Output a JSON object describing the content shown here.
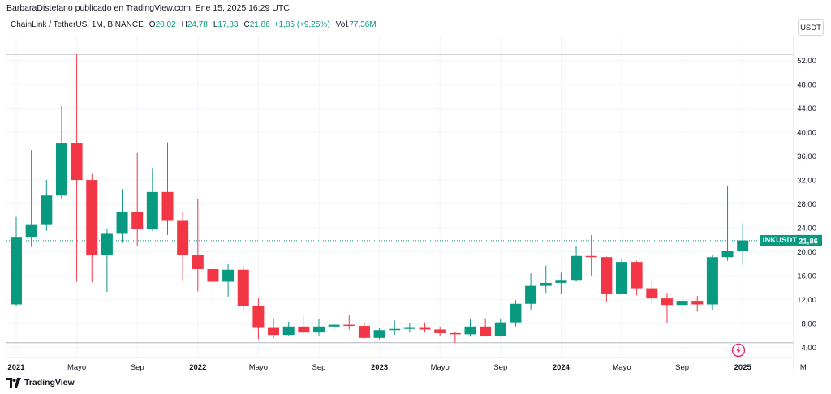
{
  "header": {
    "attribution": "BarbaraDistefano publicado en TradingView.com, Ene 15, 2025 16:29 UTC",
    "symbol": "ChainLink / TetherUS, 1M, BINANCE",
    "o_label": "O",
    "o_value": "20,02",
    "h_label": "H",
    "h_value": "24,78",
    "l_label": "L",
    "l_value": "17,83",
    "c_label": "C",
    "c_value": "21,86",
    "change": "+1,85 (+9,25%)",
    "vol_label": "Vol.",
    "vol_value": "77,36M",
    "currency_button": "USDT"
  },
  "price_tag": {
    "label": "LINKUSDT",
    "value": "21,86"
  },
  "brand": {
    "name": "TradingView"
  },
  "colors": {
    "up": "#089981",
    "down": "#f23645",
    "grid": "#f0f3fa",
    "axis_text": "#131722"
  },
  "chart_data": {
    "type": "candlestick",
    "ylim": [
      3,
      56
    ],
    "y_ticks": [
      "4,00",
      "8,00",
      "12,00",
      "16,00",
      "20,00",
      "24,00",
      "28,00",
      "32,00",
      "36,00",
      "40,00",
      "44,00",
      "48,00",
      "52,00"
    ],
    "y_tick_values": [
      4,
      8,
      12,
      16,
      20,
      24,
      28,
      32,
      36,
      40,
      44,
      48,
      52
    ],
    "x_labels": [
      {
        "label": "2021",
        "index": 0,
        "bold": true
      },
      {
        "label": "Mayo",
        "index": 4,
        "bold": false
      },
      {
        "label": "Sep",
        "index": 8,
        "bold": false
      },
      {
        "label": "2022",
        "index": 12,
        "bold": true
      },
      {
        "label": "Mayo",
        "index": 16,
        "bold": false
      },
      {
        "label": "Sep",
        "index": 20,
        "bold": false
      },
      {
        "label": "2023",
        "index": 24,
        "bold": true
      },
      {
        "label": "Mayo",
        "index": 28,
        "bold": false
      },
      {
        "label": "Sep",
        "index": 32,
        "bold": false
      },
      {
        "label": "2024",
        "index": 36,
        "bold": true
      },
      {
        "label": "Mayo",
        "index": 40,
        "bold": false
      },
      {
        "label": "Sep",
        "index": 44,
        "bold": false
      },
      {
        "label": "2025",
        "index": 48,
        "bold": true
      },
      {
        "label": "M",
        "index": 52,
        "bold": false
      }
    ],
    "last_price": 21.86,
    "series": [
      {
        "name": "LINKUSDT",
        "ohlc": [
          [
            11.2,
            25.8,
            10.9,
            22.5
          ],
          [
            22.5,
            37.0,
            20.8,
            24.6
          ],
          [
            24.6,
            32.0,
            23.5,
            29.4
          ],
          [
            29.4,
            44.4,
            28.8,
            38.1
          ],
          [
            38.1,
            53.0,
            15.0,
            32.0
          ],
          [
            32.0,
            33.0,
            14.9,
            19.5
          ],
          [
            19.5,
            23.8,
            13.3,
            23.0
          ],
          [
            23.0,
            30.5,
            21.5,
            26.6
          ],
          [
            26.6,
            36.5,
            21.0,
            23.8
          ],
          [
            23.8,
            34.0,
            23.5,
            30.0
          ],
          [
            30.0,
            38.3,
            22.8,
            25.3
          ],
          [
            25.3,
            26.8,
            15.2,
            19.5
          ],
          [
            19.5,
            28.9,
            13.4,
            17.1
          ],
          [
            17.1,
            19.4,
            11.4,
            15.0
          ],
          [
            15.0,
            17.9,
            12.5,
            17.0
          ],
          [
            17.0,
            17.6,
            10.1,
            11.0
          ],
          [
            11.0,
            12.3,
            5.4,
            7.4
          ],
          [
            7.4,
            8.9,
            5.5,
            6.1
          ],
          [
            6.1,
            8.3,
            6.0,
            7.5
          ],
          [
            7.5,
            9.4,
            6.2,
            6.5
          ],
          [
            6.5,
            8.8,
            6.0,
            7.5
          ],
          [
            7.5,
            8.0,
            6.8,
            7.8
          ],
          [
            7.8,
            9.5,
            7.0,
            7.6
          ],
          [
            7.6,
            8.1,
            5.5,
            5.6
          ],
          [
            5.6,
            7.3,
            5.4,
            6.9
          ],
          [
            6.9,
            8.5,
            6.1,
            7.1
          ],
          [
            7.1,
            8.0,
            6.5,
            7.4
          ],
          [
            7.4,
            8.2,
            6.5,
            7.0
          ],
          [
            7.0,
            7.5,
            5.9,
            6.4
          ],
          [
            6.4,
            6.6,
            4.8,
            6.2
          ],
          [
            6.2,
            8.7,
            5.8,
            7.5
          ],
          [
            7.5,
            8.9,
            5.8,
            5.9
          ],
          [
            5.9,
            8.7,
            5.8,
            8.2
          ],
          [
            8.2,
            11.9,
            7.5,
            11.3
          ],
          [
            11.3,
            16.4,
            10.2,
            14.3
          ],
          [
            14.3,
            17.7,
            13.0,
            14.8
          ],
          [
            14.8,
            16.5,
            12.9,
            15.3
          ],
          [
            15.3,
            21.0,
            15.0,
            19.3
          ],
          [
            19.3,
            22.8,
            16.0,
            19.1
          ],
          [
            19.1,
            19.2,
            11.6,
            12.9
          ],
          [
            12.9,
            18.8,
            12.8,
            18.3
          ],
          [
            18.3,
            18.5,
            12.7,
            13.9
          ],
          [
            13.9,
            15.2,
            11.3,
            12.2
          ],
          [
            12.2,
            13.0,
            8.0,
            11.1
          ],
          [
            11.1,
            12.8,
            9.3,
            11.8
          ],
          [
            11.8,
            12.6,
            10.0,
            11.2
          ],
          [
            11.2,
            19.5,
            10.3,
            19.1
          ],
          [
            19.1,
            31.0,
            18.5,
            20.2
          ],
          [
            20.2,
            24.8,
            17.8,
            21.9
          ]
        ]
      }
    ]
  }
}
